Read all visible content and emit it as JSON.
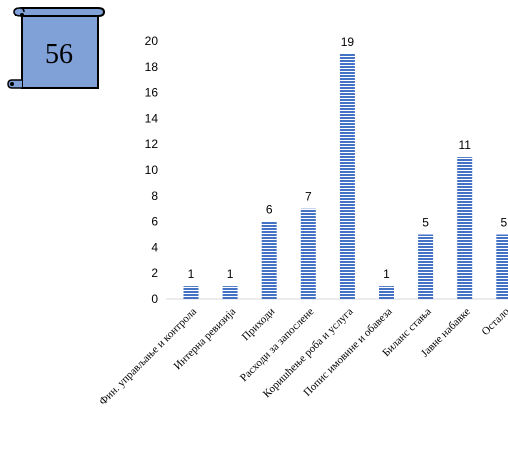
{
  "badge": {
    "number": "56"
  },
  "chart_data": {
    "type": "bar",
    "categories": [
      "Фин. управљање и контрола",
      "Интерна ревизија",
      "Приходи",
      "Расходи за запослене",
      "Коришћење роба и услуга",
      "Попис имовине и обавеза",
      "Биланс стања",
      "Јавне набавке",
      "Остало"
    ],
    "values": [
      1,
      1,
      6,
      7,
      19,
      1,
      5,
      11,
      5
    ],
    "ylim": [
      0,
      20
    ],
    "yticks": [
      0,
      2,
      4,
      6,
      8,
      10,
      12,
      14,
      16,
      18,
      20
    ],
    "grid": false,
    "bar_color": "#4472C4",
    "bar_pattern": "horizontal-stripes",
    "title": "",
    "xlabel": "",
    "ylabel": ""
  }
}
